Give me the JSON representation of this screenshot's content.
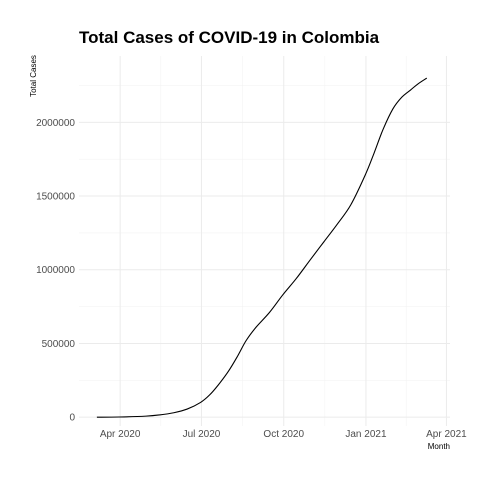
{
  "chart_data": {
    "type": "line",
    "title": "Total Cases of COVID-19 in Colombia",
    "xlabel": "Month",
    "ylabel": "Total Cases",
    "grid": true,
    "legend": "none",
    "xlim": [
      "2020-02-15",
      "2021-04-05"
    ],
    "ylim": [
      -60000,
      2450000
    ],
    "x_ticks": [
      {
        "date": "2020-04-01",
        "label": "Apr 2020"
      },
      {
        "date": "2020-07-01",
        "label": "Jul 2020"
      },
      {
        "date": "2020-10-01",
        "label": "Oct 2020"
      },
      {
        "date": "2021-01-01",
        "label": "Jan 2021"
      },
      {
        "date": "2021-04-01",
        "label": "Apr 2021"
      }
    ],
    "y_ticks": [
      {
        "value": 0,
        "label": "0"
      },
      {
        "value": 500000,
        "label": "500000"
      },
      {
        "value": 1000000,
        "label": "1000000"
      },
      {
        "value": 1500000,
        "label": "1500000"
      },
      {
        "value": 2000000,
        "label": "2000000"
      }
    ],
    "series": [
      {
        "color": "#000000",
        "points": [
          {
            "x": "2020-03-06",
            "y": 0
          },
          {
            "x": "2020-03-31",
            "y": 1000
          },
          {
            "x": "2020-04-30",
            "y": 7000
          },
          {
            "x": "2020-05-15",
            "y": 15000
          },
          {
            "x": "2020-05-31",
            "y": 30000
          },
          {
            "x": "2020-06-15",
            "y": 55000
          },
          {
            "x": "2020-06-30",
            "y": 100000
          },
          {
            "x": "2020-07-10",
            "y": 150000
          },
          {
            "x": "2020-07-20",
            "y": 220000
          },
          {
            "x": "2020-07-31",
            "y": 310000
          },
          {
            "x": "2020-08-10",
            "y": 410000
          },
          {
            "x": "2020-08-20",
            "y": 520000
          },
          {
            "x": "2020-08-31",
            "y": 610000
          },
          {
            "x": "2020-09-15",
            "y": 710000
          },
          {
            "x": "2020-09-30",
            "y": 830000
          },
          {
            "x": "2020-10-15",
            "y": 940000
          },
          {
            "x": "2020-10-31",
            "y": 1070000
          },
          {
            "x": "2020-11-15",
            "y": 1190000
          },
          {
            "x": "2020-11-30",
            "y": 1310000
          },
          {
            "x": "2020-12-15",
            "y": 1440000
          },
          {
            "x": "2020-12-31",
            "y": 1640000
          },
          {
            "x": "2021-01-10",
            "y": 1790000
          },
          {
            "x": "2021-01-20",
            "y": 1950000
          },
          {
            "x": "2021-01-31",
            "y": 2090000
          },
          {
            "x": "2021-02-10",
            "y": 2170000
          },
          {
            "x": "2021-02-20",
            "y": 2220000
          },
          {
            "x": "2021-02-28",
            "y": 2260000
          },
          {
            "x": "2021-03-10",
            "y": 2300000
          }
        ]
      }
    ]
  }
}
